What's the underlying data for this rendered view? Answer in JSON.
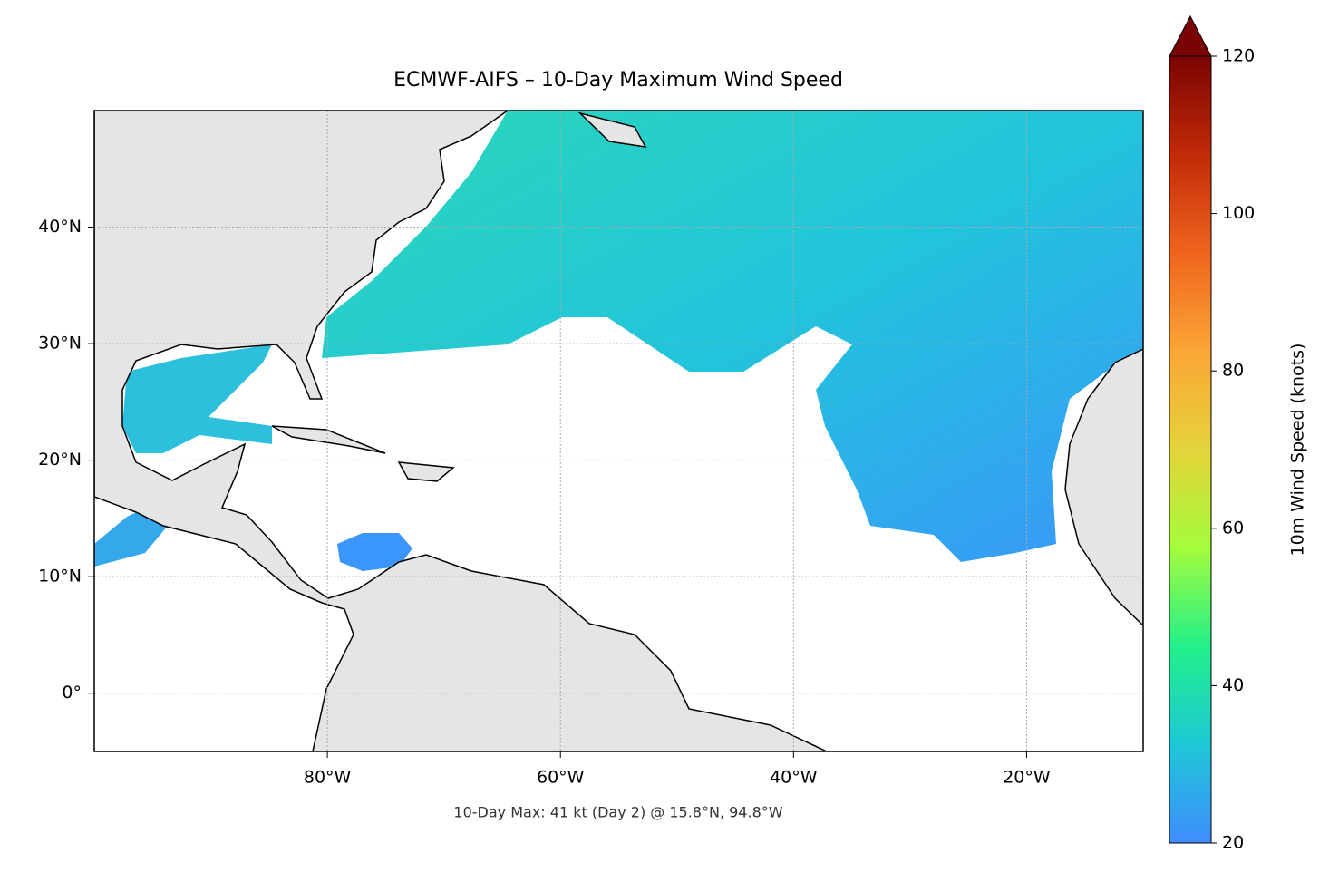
{
  "chart_data": {
    "type": "map",
    "title": "ECMWF-AIFS – 10-Day Maximum Wind Speed",
    "annotation": "10-Day Max: 41 kt (Day 2) @ 15.8°N, 94.8°W",
    "xlim": [
      -100,
      -10
    ],
    "ylim": [
      -5,
      50
    ],
    "xticks": [
      {
        "value": -80,
        "label": "80°W"
      },
      {
        "value": -60,
        "label": "60°W"
      },
      {
        "value": -40,
        "label": "40°W"
      },
      {
        "value": -20,
        "label": "20°W"
      }
    ],
    "yticks": [
      {
        "value": 0,
        "label": "0°"
      },
      {
        "value": 10,
        "label": "10°N"
      },
      {
        "value": 20,
        "label": "20°N"
      },
      {
        "value": 30,
        "label": "30°N"
      },
      {
        "value": 40,
        "label": "40°N"
      }
    ],
    "grid": true,
    "colorbar": {
      "label": "10m Wind Speed (knots)",
      "lim": [
        20,
        120
      ],
      "ticks": [
        20,
        40,
        60,
        80,
        100,
        120
      ],
      "extend": "max",
      "colors": [
        "#3f8cff",
        "#1ec8d6",
        "#22f08a",
        "#a4fc3c",
        "#e4d33a",
        "#fba636",
        "#f0641e",
        "#c22a08",
        "#7a0403"
      ]
    }
  }
}
